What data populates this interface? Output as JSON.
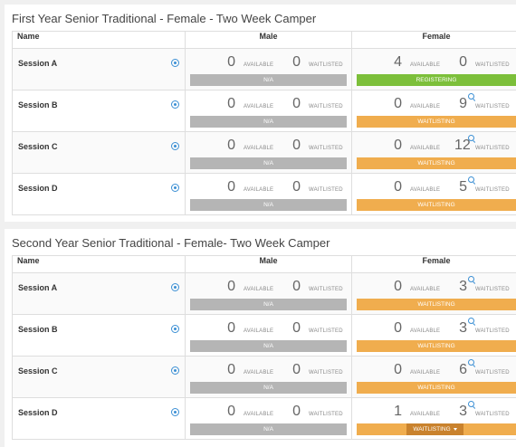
{
  "labels": {
    "name": "Name",
    "male": "Male",
    "female": "Female",
    "available": "AVAILABLE",
    "waitlisted": "WAITLISTED"
  },
  "colors": {
    "na": "#b5b5b5",
    "registering": "#7cbf3a",
    "waitlisting": "#f0ad4e",
    "info_icon": "#3b8fd4"
  },
  "groups": [
    {
      "title": "First Year Senior Traditional - Female - Two Week Camper",
      "sessions": [
        {
          "name": "Session A",
          "male": {
            "available": "0",
            "waitlisted": "0",
            "status": "N/A"
          },
          "female": {
            "available": "4",
            "waitlisted": "0",
            "status": "REGISTERING",
            "search": false
          }
        },
        {
          "name": "Session B",
          "male": {
            "available": "0",
            "waitlisted": "0",
            "status": "N/A"
          },
          "female": {
            "available": "0",
            "waitlisted": "9",
            "status": "WAITLISTING",
            "search": true
          }
        },
        {
          "name": "Session C",
          "male": {
            "available": "0",
            "waitlisted": "0",
            "status": "N/A"
          },
          "female": {
            "available": "0",
            "waitlisted": "12",
            "status": "WAITLISTING",
            "search": true
          }
        },
        {
          "name": "Session D",
          "male": {
            "available": "0",
            "waitlisted": "0",
            "status": "N/A"
          },
          "female": {
            "available": "0",
            "waitlisted": "5",
            "status": "WAITLISTING",
            "search": true
          }
        }
      ]
    },
    {
      "title": "Second Year Senior Traditional - Female- Two Week Camper",
      "sessions": [
        {
          "name": "Session A",
          "male": {
            "available": "0",
            "waitlisted": "0",
            "status": "N/A"
          },
          "female": {
            "available": "0",
            "waitlisted": "3",
            "status": "WAITLISTING",
            "search": true
          }
        },
        {
          "name": "Session B",
          "male": {
            "available": "0",
            "waitlisted": "0",
            "status": "N/A"
          },
          "female": {
            "available": "0",
            "waitlisted": "3",
            "status": "WAITLISTING",
            "search": true
          }
        },
        {
          "name": "Session C",
          "male": {
            "available": "0",
            "waitlisted": "0",
            "status": "N/A"
          },
          "female": {
            "available": "0",
            "waitlisted": "6",
            "status": "WAITLISTING",
            "search": true
          }
        },
        {
          "name": "Session D",
          "male": {
            "available": "0",
            "waitlisted": "0",
            "status": "N/A"
          },
          "female": {
            "available": "1",
            "waitlisted": "3",
            "status": "WAITLISTING",
            "search": true,
            "dropdown": true
          }
        }
      ]
    }
  ]
}
